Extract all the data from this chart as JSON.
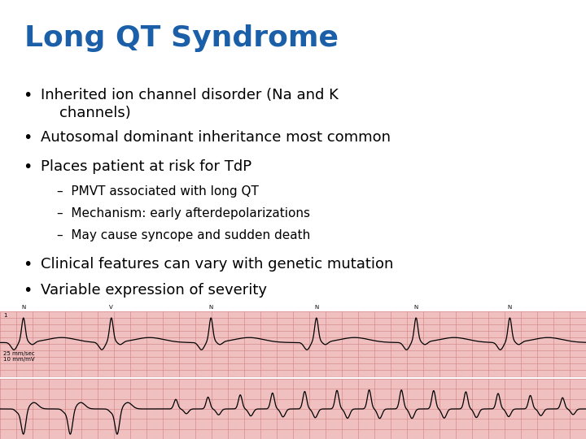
{
  "title": "Long QT Syndrome",
  "title_color": "#1a5fa8",
  "title_fontsize": 26,
  "title_bold": true,
  "background_color": "#ffffff",
  "bullet_color": "#000000",
  "bullet_fontsize": 13,
  "sub_bullet_fontsize": 11,
  "bullets": [
    {
      "level": 1,
      "text": "Inherited ion channel disorder (Na and K\n    channels)"
    },
    {
      "level": 1,
      "text": "Autosomal dominant inheritance most common"
    },
    {
      "level": 1,
      "text": "Places patient at risk for TdP"
    },
    {
      "level": 2,
      "text": "–  PMVT associated with long QT"
    },
    {
      "level": 2,
      "text": "–  Mechanism: early afterdepolarizations"
    },
    {
      "level": 2,
      "text": "–  May cause syncope and sudden death"
    },
    {
      "level": 1,
      "text": "Clinical features can vary with genetic mutation"
    },
    {
      "level": 1,
      "text": "Variable expression of severity"
    }
  ],
  "ecg_bg_color": "#f0c0c0",
  "ecg_grid_color": "#d08080"
}
